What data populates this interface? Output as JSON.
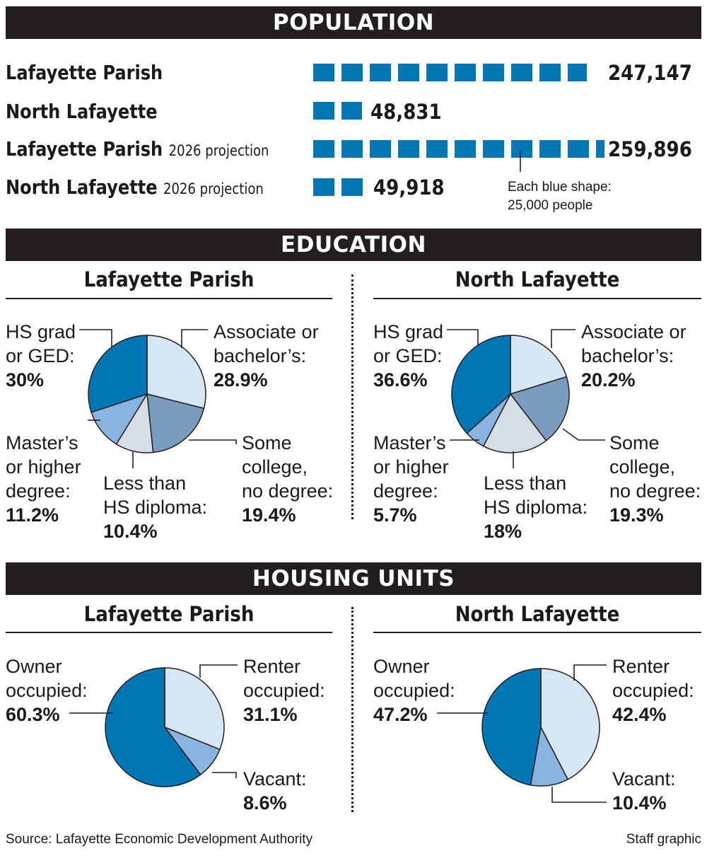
{
  "population": {
    "header": "POPULATION",
    "rows": [
      {
        "name": "Lafayette Parish",
        "note": "",
        "value": 247147,
        "label": "247,147"
      },
      {
        "name": "North Lafayette",
        "note": "",
        "value": 48831,
        "label": "48,831"
      },
      {
        "name": "Lafayette Parish",
        "note": "2026 projection",
        "value": 259896,
        "label": "259,896"
      },
      {
        "name": "North Lafayette",
        "note": "2026 projection",
        "value": 49918,
        "label": "49,918"
      }
    ],
    "unit_per_shape": 25000,
    "legend_line1": "Each blue shape:",
    "legend_line2": "25,000 people"
  },
  "education": {
    "header": "EDUCATION",
    "panels": [
      {
        "title": "Lafayette Parish",
        "labels": {
          "hs": {
            "l1": "HS grad",
            "l2": "or GED:",
            "pct": "30%"
          },
          "assoc": {
            "l1": "Associate or",
            "l2": "bachelor’s:",
            "pct": "28.9%"
          },
          "some": {
            "l1": "Some",
            "l2": "college,",
            "l3": "no degree:",
            "pct": "19.4%"
          },
          "less": {
            "l1": "Less than",
            "l2": "HS diploma:",
            "pct": "10.4%"
          },
          "masters": {
            "l1": "Master’s",
            "l2": "or higher",
            "l3": "degree:",
            "pct": "11.2%"
          }
        }
      },
      {
        "title": "North Lafayette",
        "labels": {
          "hs": {
            "l1": "HS grad",
            "l2": "or GED:",
            "pct": "36.6%"
          },
          "assoc": {
            "l1": "Associate or",
            "l2": "bachelor’s:",
            "pct": "20.2%"
          },
          "some": {
            "l1": "Some",
            "l2": "college,",
            "l3": "no degree:",
            "pct": "19.3%"
          },
          "less": {
            "l1": "Less than",
            "l2": "HS diploma:",
            "pct": "18%"
          },
          "masters": {
            "l1": "Master’s",
            "l2": "or higher",
            "l3": "degree:",
            "pct": "5.7%"
          }
        }
      }
    ]
  },
  "housing": {
    "header": "HOUSING UNITS",
    "panels": [
      {
        "title": "Lafayette Parish",
        "labels": {
          "owner": {
            "l1": "Owner",
            "l2": "occupied:",
            "pct": "60.3%"
          },
          "renter": {
            "l1": "Renter",
            "l2": "occupied:",
            "pct": "31.1%"
          },
          "vacant": {
            "l1": "Vacant:",
            "pct": "8.6%"
          }
        }
      },
      {
        "title": "North Lafayette",
        "labels": {
          "owner": {
            "l1": "Owner",
            "l2": "occupied:",
            "pct": "47.2%"
          },
          "renter": {
            "l1": "Renter",
            "l2": "occupied:",
            "pct": "42.4%"
          },
          "vacant": {
            "l1": "Vacant:",
            "pct": "10.4%"
          }
        }
      }
    ]
  },
  "footer": {
    "source": "Source: Lafayette Economic Development Authority",
    "credit": "Staff graphic"
  },
  "colors": {
    "header_bg": "#231f20",
    "pop_blue": "#0077b4",
    "hs": "#0077b4",
    "assoc": "#d6e6f5",
    "some": "#7b9cbd",
    "less": "#d6dee5",
    "masters": "#8ab4e0",
    "owner": "#0077b4",
    "renter": "#d6e6f5",
    "vacant": "#8ab4e0"
  },
  "chart_data": [
    {
      "type": "bar",
      "title": "POPULATION",
      "categories": [
        "Lafayette Parish",
        "North Lafayette",
        "Lafayette Parish 2026 projection",
        "North Lafayette 2026 projection"
      ],
      "values": [
        247147,
        48831,
        259896,
        49918
      ]
    },
    {
      "type": "pie",
      "title": "Lafayette Parish",
      "categories": [
        "HS grad or GED",
        "Associate or bachelor’s",
        "Some college, no degree",
        "Less than HS diploma",
        "Master’s or higher degree"
      ],
      "values": [
        30,
        28.9,
        19.4,
        10.4,
        11.2
      ]
    },
    {
      "type": "pie",
      "title": "North Lafayette",
      "categories": [
        "HS grad or GED",
        "Associate or bachelor’s",
        "Some college, no degree",
        "Less than HS diploma",
        "Master’s or higher degree"
      ],
      "values": [
        36.6,
        20.2,
        19.3,
        18,
        5.7
      ]
    },
    {
      "type": "pie",
      "title": "Lafayette Parish",
      "categories": [
        "Owner occupied",
        "Renter occupied",
        "Vacant"
      ],
      "values": [
        60.3,
        31.1,
        8.6
      ]
    },
    {
      "type": "pie",
      "title": "North Lafayette",
      "categories": [
        "Owner occupied",
        "Renter occupied",
        "Vacant"
      ],
      "values": [
        47.2,
        42.4,
        10.4
      ]
    }
  ]
}
